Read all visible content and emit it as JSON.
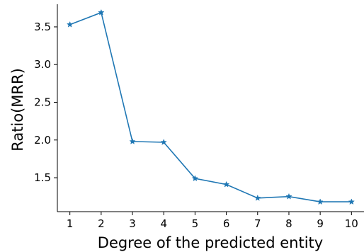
{
  "chart_data": {
    "type": "line",
    "title": "",
    "xlabel": "Degree of the predicted entity",
    "ylabel": "Ratio(MRR)",
    "x": [
      1,
      2,
      3,
      4,
      5,
      6,
      7,
      8,
      9,
      10
    ],
    "xticks": [
      "1",
      "2",
      "3",
      "4",
      "5",
      "6",
      "7",
      "8",
      "9",
      "10"
    ],
    "yticks": [
      "1.5",
      "2.0",
      "2.5",
      "3.0",
      "3.5"
    ],
    "ytick_values": [
      1.5,
      2.0,
      2.5,
      3.0,
      3.5
    ],
    "xlim": [
      0.6,
      10.4
    ],
    "ylim": [
      1.05,
      3.8
    ],
    "grid": false,
    "series": [
      {
        "values": [
          3.53,
          3.69,
          1.98,
          1.97,
          1.49,
          1.41,
          1.23,
          1.25,
          1.18,
          1.18
        ],
        "color": "#1f77b4",
        "marker": "star"
      }
    ]
  }
}
